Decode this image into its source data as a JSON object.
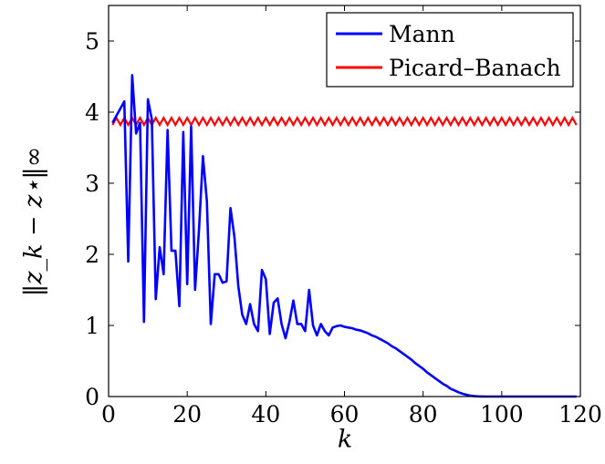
{
  "chart_data": {
    "type": "line",
    "title": "",
    "xlabel": "k",
    "ylabel": "‖z_k − z⋆‖∞",
    "xlim": [
      0,
      120
    ],
    "ylim": [
      0,
      5.5
    ],
    "xticks": [
      0,
      20,
      40,
      60,
      80,
      100,
      120
    ],
    "yticks": [
      0,
      1,
      2,
      3,
      4,
      5
    ],
    "grid": false,
    "legend_position": "top-right",
    "series": [
      {
        "name": "Mann",
        "color": "#0000ff",
        "x": [
          1,
          2,
          3,
          4,
          5,
          6,
          7,
          8,
          9,
          10,
          11,
          12,
          13,
          14,
          15,
          16,
          17,
          18,
          19,
          20,
          21,
          22,
          23,
          24,
          25,
          26,
          27,
          28,
          29,
          30,
          31,
          32,
          33,
          34,
          35,
          36,
          37,
          38,
          39,
          40,
          41,
          42,
          43,
          44,
          45,
          46,
          47,
          48,
          49,
          50,
          51,
          52,
          53,
          54,
          55,
          56,
          57,
          58,
          59,
          60,
          61,
          62,
          63,
          64,
          65,
          66,
          67,
          68,
          69,
          70,
          71,
          72,
          73,
          74,
          75,
          76,
          77,
          78,
          79,
          80,
          81,
          82,
          83,
          84,
          85,
          86,
          87,
          88,
          89,
          90,
          91,
          92,
          93,
          94,
          95,
          96,
          97,
          98,
          99,
          100,
          101,
          102,
          103,
          104,
          105,
          106,
          107,
          108,
          109,
          110,
          111,
          112,
          113,
          114,
          115,
          116,
          117,
          118,
          119
        ],
        "y": [
          3.85,
          3.95,
          4.05,
          4.15,
          1.9,
          4.52,
          3.7,
          3.85,
          1.05,
          4.18,
          3.9,
          1.37,
          2.1,
          1.72,
          3.75,
          2.05,
          2.05,
          1.27,
          3.72,
          1.58,
          3.8,
          1.5,
          2.35,
          3.38,
          2.75,
          1.02,
          1.72,
          1.72,
          1.6,
          1.62,
          2.65,
          2.25,
          1.55,
          1.15,
          1.02,
          1.3,
          1.02,
          0.92,
          1.78,
          1.65,
          0.88,
          1.32,
          1.38,
          1.02,
          0.82,
          1.05,
          1.35,
          1.02,
          1.02,
          0.92,
          1.5,
          1.0,
          0.86,
          1.02,
          0.92,
          0.86,
          0.97,
          0.99,
          1.0,
          0.98,
          0.97,
          0.96,
          0.94,
          0.93,
          0.91,
          0.89,
          0.86,
          0.84,
          0.81,
          0.78,
          0.75,
          0.71,
          0.68,
          0.64,
          0.6,
          0.56,
          0.52,
          0.47,
          0.43,
          0.39,
          0.34,
          0.3,
          0.26,
          0.22,
          0.18,
          0.15,
          0.11,
          0.085,
          0.06,
          0.04,
          0.025,
          0.013,
          0.006,
          0.002,
          0.001,
          0,
          0,
          0,
          0,
          0,
          0,
          0,
          0,
          0,
          0,
          0,
          0,
          0,
          0,
          0,
          0,
          0,
          0,
          0,
          0,
          0,
          0,
          0,
          0
        ]
      },
      {
        "name": "Picard–Banach",
        "color": "#ff0000",
        "pattern": "alternating",
        "x_start": 1,
        "x_end": 119,
        "high": 3.92,
        "low": 3.82
      }
    ]
  },
  "legend": {
    "items": [
      {
        "label": "Mann",
        "color": "#0000ff"
      },
      {
        "label": "Picard–Banach",
        "color": "#ff0000"
      }
    ]
  }
}
